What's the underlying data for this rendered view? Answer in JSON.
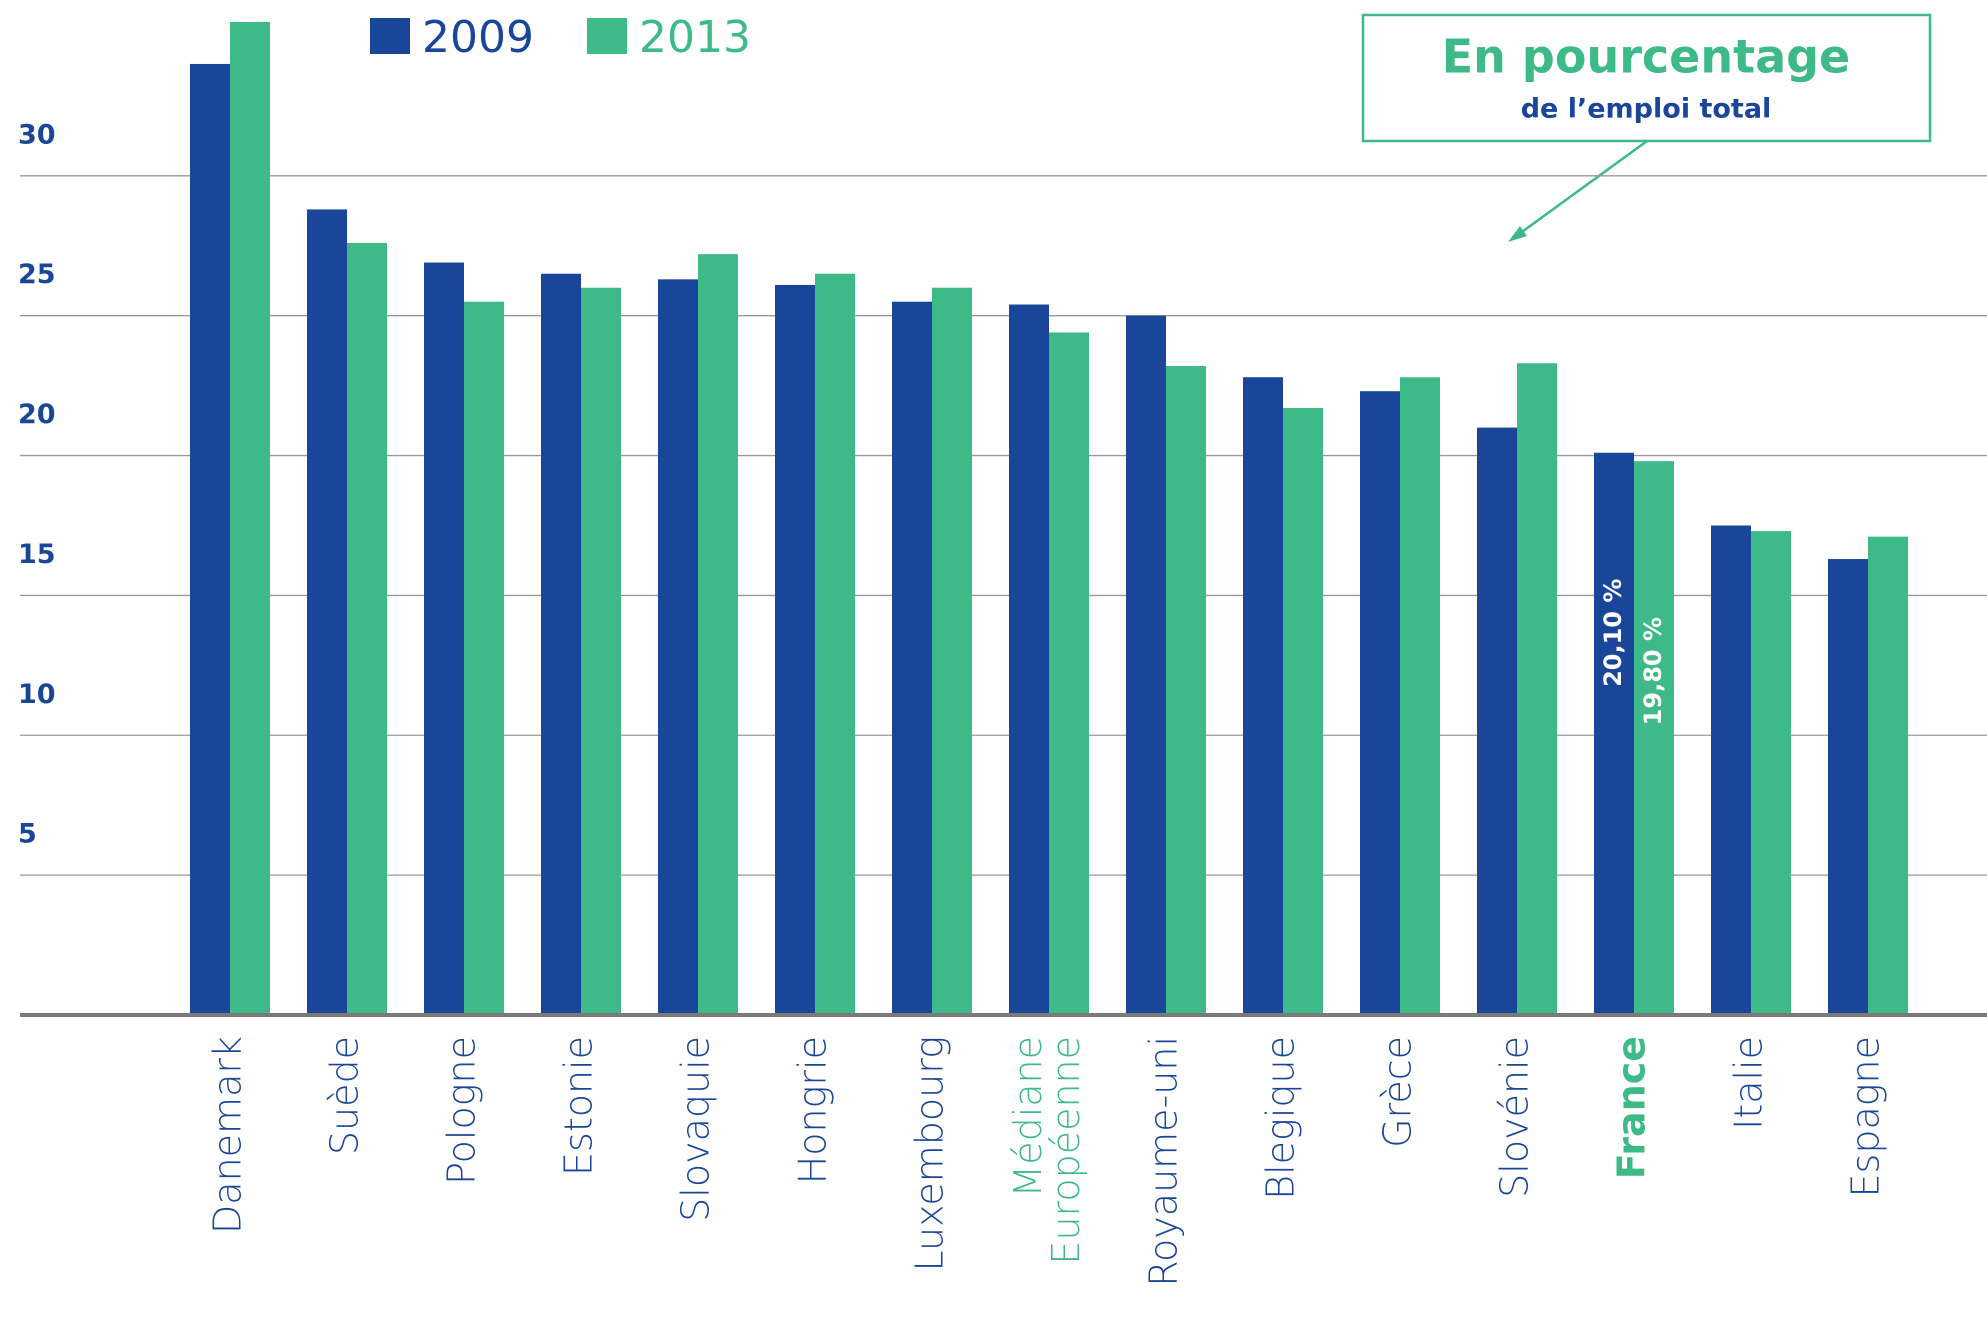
{
  "chart_data": {
    "type": "bar",
    "annotation": {
      "title": "En pourcentage",
      "subtitle": "de l’emploi total"
    },
    "categories": [
      "Danemark",
      "Suède",
      "Pologne",
      "Estonie",
      "Slovaquie",
      "Hongrie",
      "Luxembourg",
      "Médiane Européenne",
      "Royaume-uni",
      "Blegique",
      "Grèce",
      "Slovénie",
      "France",
      "Italie",
      "Espagne"
    ],
    "label_colors": [
      "#1a4699",
      "#1a4699",
      "#1a4699",
      "#1a4699",
      "#1a4699",
      "#1a4699",
      "#1a4699",
      "#3dba87",
      "#1a4699",
      "#1a4699",
      "#1a4699",
      "#1a4699",
      "#3dba87",
      "#1a4699",
      "#1a4699"
    ],
    "bold_categories": [
      12
    ],
    "series": [
      {
        "name": "2009",
        "color": "#1a4699",
        "values": [
          34.0,
          28.8,
          26.9,
          26.5,
          26.3,
          26.1,
          25.5,
          25.4,
          25.0,
          22.8,
          22.3,
          21.0,
          20.1,
          17.5,
          16.3
        ],
        "value_labels": [
          null,
          null,
          null,
          null,
          null,
          null,
          null,
          null,
          null,
          null,
          null,
          null,
          "20,10 %",
          null,
          null
        ]
      },
      {
        "name": "2013",
        "color": "#3dba87",
        "values": [
          35.5,
          27.6,
          25.5,
          26.0,
          27.2,
          26.5,
          26.0,
          24.4,
          23.2,
          21.7,
          22.8,
          23.3,
          19.8,
          17.3,
          17.1
        ],
        "value_labels": [
          null,
          null,
          null,
          null,
          null,
          null,
          null,
          null,
          null,
          null,
          null,
          null,
          "19,80 %",
          null,
          null
        ]
      }
    ],
    "ylim": [
      0,
      36
    ],
    "yticks": [
      5,
      10,
      15,
      20,
      25,
      30
    ],
    "grid": true
  }
}
